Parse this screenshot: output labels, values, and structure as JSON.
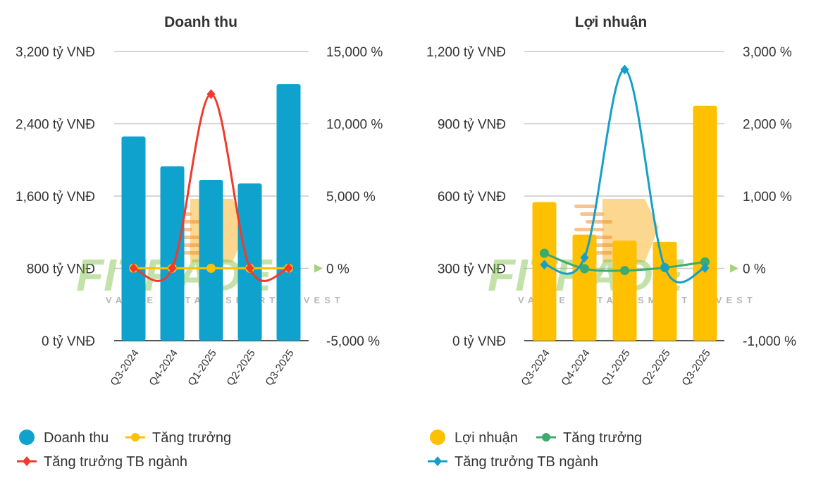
{
  "chart_data": [
    {
      "type": "bar+line",
      "title": "Doanh thu",
      "categories": [
        "Q3-2024",
        "Q4-2024",
        "Q1-2025",
        "Q2-2025",
        "Q3-2025"
      ],
      "left_axis": {
        "ylim": [
          0,
          3200
        ],
        "ticks": [
          0,
          800,
          1600,
          2400,
          3200
        ],
        "tick_labels": [
          "0 tỷ VNĐ",
          "800 tỷ VNĐ",
          "1,600 tỷ VNĐ",
          "2,400 tỷ VNĐ",
          "3,200 tỷ VNĐ"
        ]
      },
      "right_axis": {
        "ylim": [
          -5000,
          15000
        ],
        "ticks": [
          -5000,
          0,
          5000,
          10000,
          15000
        ],
        "tick_labels": [
          "-5,000 %",
          "0 %",
          "5,000 %",
          "10,000 %",
          "15,000 %"
        ]
      },
      "series": [
        {
          "name": "Doanh thu",
          "kind": "bar",
          "axis": "left",
          "color": "#0ea2cc",
          "values": [
            2260,
            1930,
            1780,
            1740,
            2840
          ]
        },
        {
          "name": "Tăng trưởng",
          "kind": "line",
          "axis": "right",
          "color": "#ffc000",
          "marker": "circle",
          "values": [
            10,
            5,
            5,
            5,
            10
          ]
        },
        {
          "name": "Tăng trưởng TB ngành",
          "kind": "line",
          "axis": "right",
          "color": "#f03a2e",
          "marker": "diamond",
          "values": [
            20,
            20,
            12050,
            20,
            20
          ]
        }
      ]
    },
    {
      "type": "bar+line",
      "title": "Lợi nhuận",
      "categories": [
        "Q3-2024",
        "Q4-2024",
        "Q1-2025",
        "Q2-2025",
        "Q3-2025"
      ],
      "left_axis": {
        "ylim": [
          0,
          1200
        ],
        "ticks": [
          0,
          300,
          600,
          900,
          1200
        ],
        "tick_labels": [
          "0 tỷ VNĐ",
          "300 tỷ VNĐ",
          "600 tỷ VNĐ",
          "900 tỷ VNĐ",
          "1,200 tỷ VNĐ"
        ]
      },
      "right_axis": {
        "ylim": [
          -1000,
          3000
        ],
        "ticks": [
          -1000,
          0,
          1000,
          2000,
          3000
        ],
        "tick_labels": [
          "-1,000 %",
          "0 %",
          "1,000 %",
          "2,000 %",
          "3,000 %"
        ]
      },
      "series": [
        {
          "name": "Lợi nhuận",
          "kind": "bar",
          "axis": "left",
          "color": "#ffc000",
          "values": [
            575,
            440,
            415,
            410,
            975
          ]
        },
        {
          "name": "Tăng trưởng",
          "kind": "line",
          "axis": "right",
          "color": "#3daa6e",
          "marker": "circle",
          "values": [
            210,
            -5,
            -30,
            10,
            90
          ]
        },
        {
          "name": "Tăng trưởng TB ngành",
          "kind": "line",
          "axis": "right",
          "color": "#14a0c8",
          "marker": "diamond",
          "values": [
            50,
            150,
            2750,
            10,
            5
          ]
        }
      ]
    }
  ],
  "watermark": {
    "text": "FITRADE",
    "sub": "VALUE DATA - SMART INVEST"
  }
}
